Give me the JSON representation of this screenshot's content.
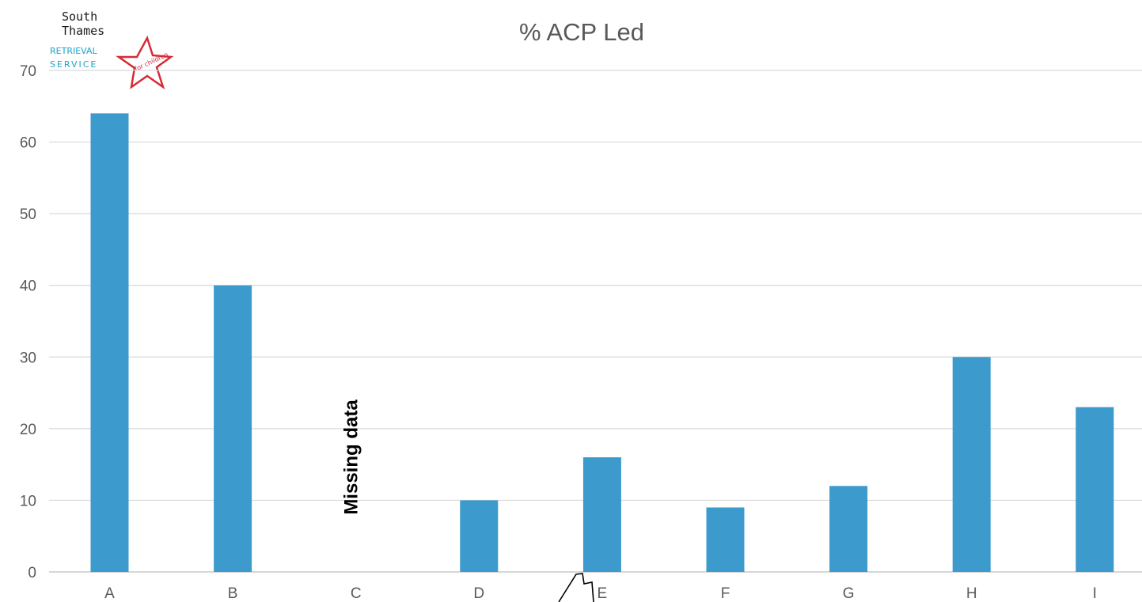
{
  "logo": {
    "line1": "South",
    "line2": "Thames",
    "line3": "RETRIEVAL",
    "line4": "SERVICE",
    "star_text": "for children",
    "colors": {
      "text": "#1a1a1a",
      "blue": "#1aa3c8",
      "star": "#d62b36"
    }
  },
  "chart_data": {
    "type": "bar",
    "title": "% ACP Led",
    "xlabel": "",
    "ylabel": "",
    "categories": [
      "A",
      "B",
      "C",
      "D",
      "E",
      "F",
      "G",
      "H",
      "I"
    ],
    "values": [
      64,
      40,
      null,
      10,
      16,
      9,
      12,
      30,
      23
    ],
    "ylim": [
      0,
      70
    ],
    "yticks": [
      0,
      10,
      20,
      30,
      40,
      50,
      60,
      70
    ],
    "grid": true,
    "bar_color": "#3d9acd",
    "annotations": [
      {
        "category": "C",
        "text": "Missing data",
        "orientation": "vertical"
      }
    ]
  }
}
